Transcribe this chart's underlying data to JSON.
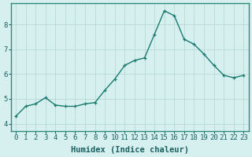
{
  "x": [
    0,
    1,
    2,
    3,
    4,
    5,
    6,
    7,
    8,
    9,
    10,
    11,
    12,
    13,
    14,
    15,
    16,
    17,
    18,
    19,
    20,
    21,
    22,
    23
  ],
  "y": [
    4.3,
    4.7,
    4.8,
    5.05,
    4.75,
    4.7,
    4.7,
    4.8,
    4.85,
    5.35,
    5.8,
    6.35,
    6.55,
    6.65,
    7.6,
    8.55,
    8.35,
    7.4,
    7.2,
    6.8,
    6.35,
    5.95,
    5.85,
    5.95
  ],
  "line_color": "#1a7a6e",
  "marker": "+",
  "markersize": 3.5,
  "linewidth": 1.0,
  "bg_color": "#d6f0f0",
  "plot_bg_color": "#d6f0f0",
  "grid_color": "#b8d8d8",
  "border_color": "#2e8b7a",
  "xlabel": "Humidex (Indice chaleur)",
  "xlabel_fontsize": 7.5,
  "ylabel_ticks": [
    4,
    5,
    6,
    7,
    8
  ],
  "xlim": [
    -0.5,
    23.5
  ],
  "ylim": [
    3.7,
    8.85
  ],
  "tick_fontsize": 6.5,
  "text_color": "#1a6060"
}
